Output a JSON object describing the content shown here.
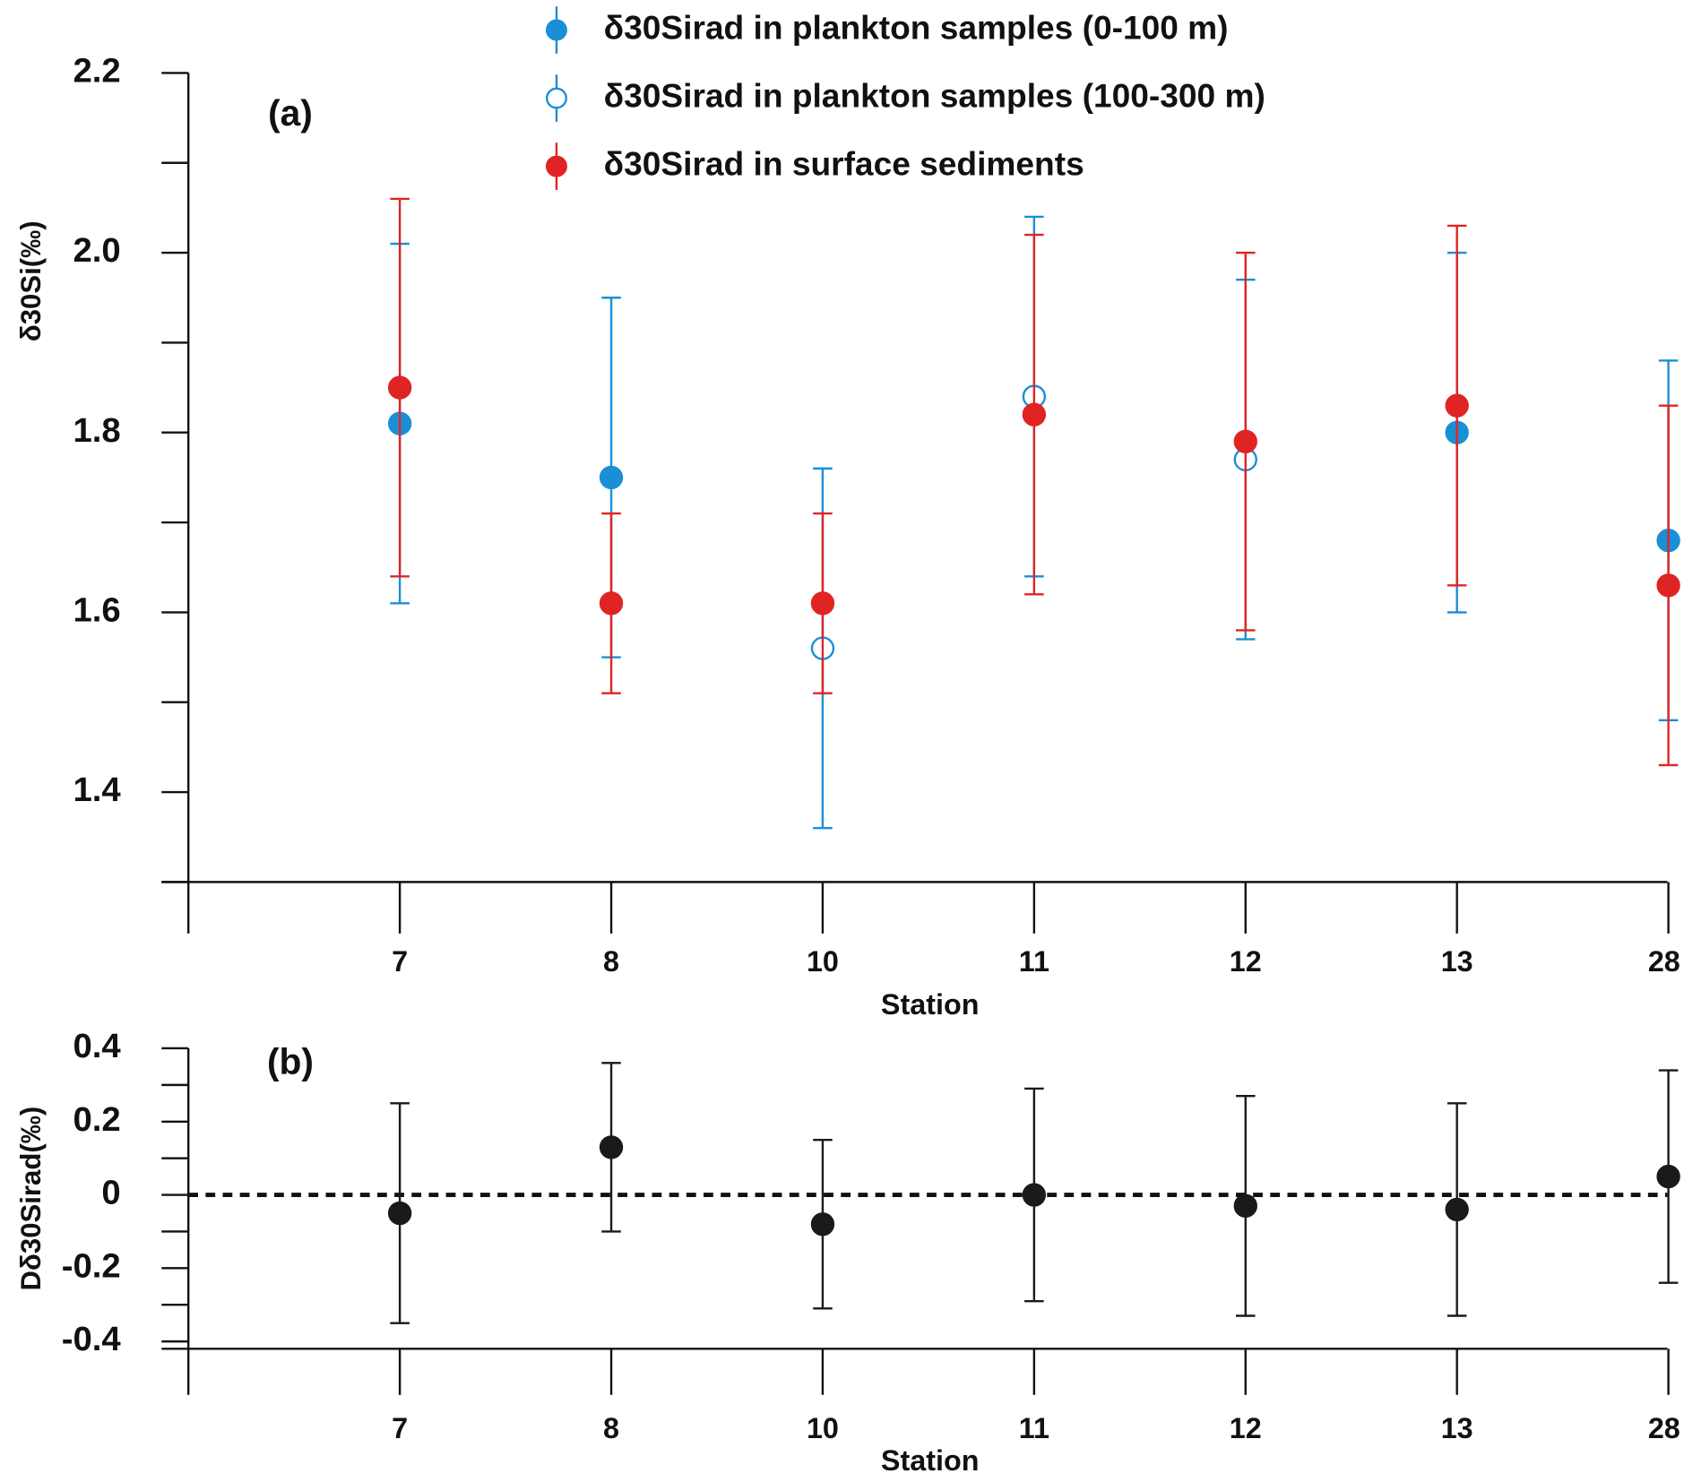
{
  "chart_data": [
    {
      "type": "scatter",
      "annotation": "(a)",
      "x_label": "Station",
      "y_label": "δ30Si(‰)",
      "categories": [
        "7",
        "8",
        "10",
        "11",
        "12",
        "13",
        "28"
      ],
      "ylim": [
        1.3,
        2.2
      ],
      "yticks": [
        1.4,
        1.6,
        1.8,
        {
          "value": 2,
          "label": "2.0"
        },
        2.2
      ],
      "yminorticks": [
        1.3,
        1.5,
        1.7,
        1.9,
        2.1
      ],
      "series": [
        {
          "name": "δ30Sirad in plankton samples (0-100 m)",
          "color": "#1a8fd6",
          "marker": "filled",
          "values": [
            1.81,
            1.75,
            null,
            null,
            null,
            1.8,
            1.68
          ],
          "errors": [
            0.2,
            0.2,
            null,
            null,
            null,
            0.2,
            0.2
          ]
        },
        {
          "name": "δ30Sirad in plankton samples (100-300 m)",
          "color": "#1a8fd6",
          "marker": "open",
          "values": [
            null,
            null,
            1.56,
            1.84,
            1.77,
            null,
            null
          ],
          "errors": [
            null,
            null,
            0.2,
            0.2,
            0.2,
            null,
            null
          ]
        },
        {
          "name": "δ30Sirad in surface sediments",
          "color": "#e02424",
          "marker": "filled",
          "values": [
            1.85,
            1.61,
            1.61,
            1.82,
            1.79,
            1.83,
            1.63
          ],
          "errors": [
            0.21,
            0.1,
            0.1,
            0.2,
            0.21,
            0.2,
            0.2
          ]
        }
      ]
    },
    {
      "type": "scatter",
      "annotation": "(b)",
      "x_label": "Station",
      "y_label": "Dδ30Sirad(‰)",
      "categories": [
        "7",
        "8",
        "10",
        "11",
        "12",
        "13",
        "28"
      ],
      "ylim": [
        -0.42,
        0.4
      ],
      "yticks": [
        0.4,
        0.2,
        0,
        -0.2,
        -0.4
      ],
      "yminorticks": [
        0.3,
        0.1,
        -0.1,
        -0.3
      ],
      "zero_line": true,
      "series": [
        {
          "name": null,
          "color": "#1a1a1a",
          "marker": "filled",
          "values": [
            -0.05,
            0.13,
            -0.08,
            0.0,
            -0.03,
            -0.04,
            0.05
          ],
          "errors": [
            0.3,
            0.23,
            0.23,
            0.29,
            0.3,
            0.29,
            0.29
          ]
        }
      ]
    }
  ]
}
